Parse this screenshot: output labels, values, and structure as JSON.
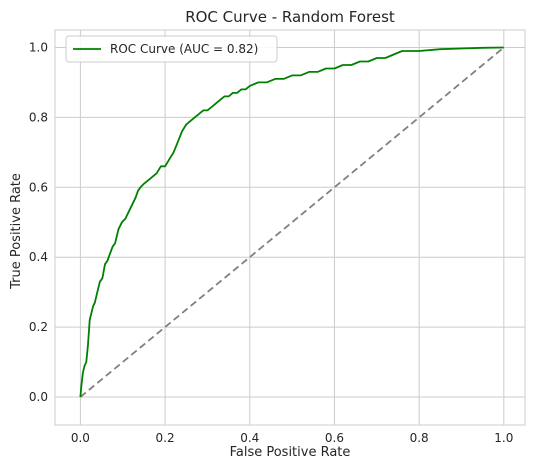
{
  "chart_data": {
    "type": "line",
    "title": "ROC Curve - Random Forest",
    "xlabel": "False Positive Rate",
    "ylabel": "True Positive Rate",
    "xlim": [
      -0.06,
      1.05
    ],
    "ylim": [
      -0.08,
      1.05
    ],
    "grid": true,
    "legend_position": "top-left",
    "x_ticks": [
      "0.0",
      "0.2",
      "0.4",
      "0.6",
      "0.8",
      "1.0"
    ],
    "y_ticks": [
      "0.0",
      "0.2",
      "0.4",
      "0.6",
      "0.8",
      "1.0"
    ],
    "series": [
      {
        "name": "ROC Curve (AUC = 0.82)",
        "color": "#008000",
        "style": "solid",
        "x": [
          0.0,
          0.002,
          0.004,
          0.006,
          0.01,
          0.014,
          0.018,
          0.022,
          0.026,
          0.03,
          0.034,
          0.04,
          0.046,
          0.052,
          0.058,
          0.064,
          0.07,
          0.076,
          0.082,
          0.09,
          0.098,
          0.106,
          0.114,
          0.122,
          0.13,
          0.136,
          0.142,
          0.15,
          0.16,
          0.17,
          0.18,
          0.19,
          0.2,
          0.21,
          0.22,
          0.23,
          0.24,
          0.25,
          0.26,
          0.27,
          0.28,
          0.29,
          0.3,
          0.31,
          0.32,
          0.33,
          0.34,
          0.35,
          0.36,
          0.37,
          0.38,
          0.39,
          0.4,
          0.42,
          0.44,
          0.46,
          0.48,
          0.5,
          0.52,
          0.54,
          0.56,
          0.58,
          0.6,
          0.62,
          0.64,
          0.66,
          0.68,
          0.7,
          0.72,
          0.74,
          0.76,
          0.78,
          0.8,
          0.85,
          0.9,
          0.95,
          1.0
        ],
        "y": [
          0.0,
          0.03,
          0.05,
          0.07,
          0.09,
          0.1,
          0.15,
          0.22,
          0.24,
          0.26,
          0.27,
          0.3,
          0.33,
          0.34,
          0.38,
          0.39,
          0.41,
          0.43,
          0.44,
          0.48,
          0.5,
          0.51,
          0.53,
          0.55,
          0.57,
          0.59,
          0.6,
          0.61,
          0.62,
          0.63,
          0.64,
          0.66,
          0.66,
          0.68,
          0.7,
          0.73,
          0.76,
          0.78,
          0.79,
          0.8,
          0.81,
          0.82,
          0.82,
          0.83,
          0.84,
          0.85,
          0.86,
          0.86,
          0.87,
          0.87,
          0.88,
          0.88,
          0.89,
          0.9,
          0.9,
          0.91,
          0.91,
          0.92,
          0.92,
          0.93,
          0.93,
          0.94,
          0.94,
          0.95,
          0.95,
          0.96,
          0.96,
          0.97,
          0.97,
          0.98,
          0.99,
          0.99,
          0.99,
          0.995,
          0.997,
          0.999,
          1.0
        ]
      },
      {
        "name": "",
        "color": "#808080",
        "style": "dashed",
        "x": [
          0.0,
          1.0
        ],
        "y": [
          0.0,
          1.0
        ]
      }
    ]
  }
}
